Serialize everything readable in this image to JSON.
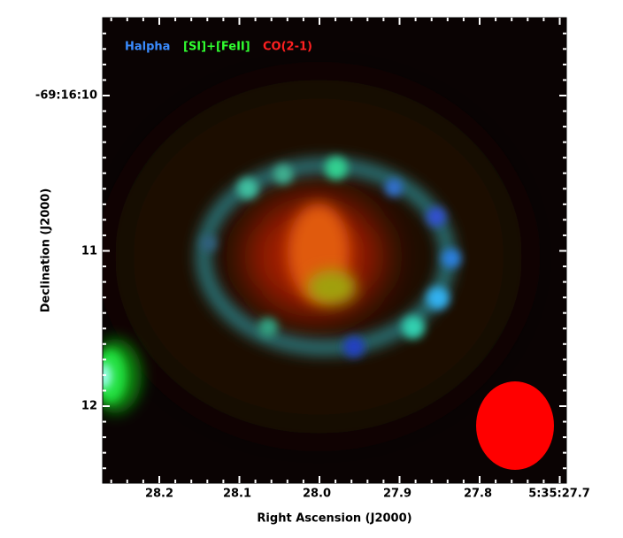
{
  "legend": [
    "Halpha",
    "[SI]+[FeII]",
    "CO(2-1)"
  ],
  "x_axis": {
    "label": "Right Ascension (J2000)",
    "ticks": [
      "28.2",
      "28.1",
      "28.0",
      "27.9",
      "27.8",
      "5:35:27.7"
    ]
  },
  "y_axis": {
    "label": "Declination (J2000)",
    "ticks": [
      "-69:16:10",
      "11",
      "12"
    ]
  }
}
